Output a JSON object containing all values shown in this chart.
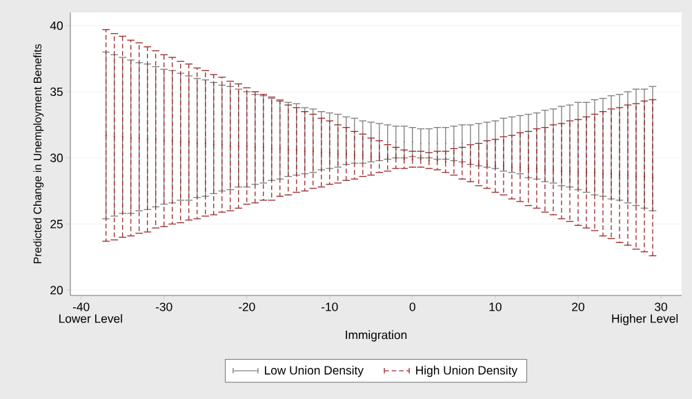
{
  "chart_data": {
    "type": "scatter",
    "xlabel": "Immigration",
    "ylabel": "Predicted Change in Unemployment Benefits",
    "x": [
      -37,
      -36,
      -35,
      -34,
      -33,
      -32,
      -31,
      -30,
      -29,
      -28,
      -27,
      -26,
      -25,
      -24,
      -23,
      -22,
      -21,
      -20,
      -19,
      -18,
      -17,
      -16,
      -15,
      -14,
      -13,
      -12,
      -11,
      -10,
      -9,
      -8,
      -7,
      -6,
      -5,
      -4,
      -3,
      -2,
      -1,
      0,
      1,
      2,
      3,
      4,
      5,
      6,
      7,
      8,
      9,
      10,
      11,
      12,
      13,
      14,
      15,
      16,
      17,
      18,
      19,
      20,
      21,
      22,
      23,
      24,
      25,
      26,
      27,
      28,
      29
    ],
    "series": [
      {
        "name": "Low Union Density",
        "color": "#7f7f7f",
        "line_style": "solid",
        "values": [
          31.7,
          31.7,
          31.7,
          31.6,
          31.6,
          31.6,
          31.6,
          31.6,
          31.6,
          31.6,
          31.5,
          31.5,
          31.5,
          31.5,
          31.5,
          31.5,
          31.5,
          31.4,
          31.4,
          31.4,
          31.4,
          31.4,
          31.4,
          31.4,
          31.3,
          31.3,
          31.3,
          31.3,
          31.3,
          31.3,
          31.3,
          31.2,
          31.2,
          31.2,
          31.2,
          31.2,
          31.2,
          31.2,
          31.1,
          31.1,
          31.1,
          31.1,
          31.1,
          31.1,
          31.0,
          31.0,
          31.0,
          31.0,
          31.0,
          31.0,
          31.0,
          30.9,
          30.9,
          30.9,
          30.9,
          30.9,
          30.9,
          30.9,
          30.8,
          30.8,
          30.8,
          30.8,
          30.8,
          30.8,
          30.8,
          30.7,
          30.7
        ],
        "errors": [
          6.3,
          6.1,
          5.9,
          5.8,
          5.6,
          5.5,
          5.3,
          5.1,
          5.0,
          4.8,
          4.7,
          4.5,
          4.4,
          4.2,
          4.0,
          3.9,
          3.7,
          3.6,
          3.4,
          3.3,
          3.1,
          3.0,
          2.8,
          2.7,
          2.5,
          2.4,
          2.2,
          2.1,
          2.0,
          1.8,
          1.7,
          1.6,
          1.5,
          1.4,
          1.3,
          1.2,
          1.2,
          1.1,
          1.1,
          1.1,
          1.2,
          1.2,
          1.3,
          1.4,
          1.5,
          1.6,
          1.7,
          1.8,
          2.0,
          2.1,
          2.2,
          2.4,
          2.5,
          2.7,
          2.8,
          3.0,
          3.1,
          3.3,
          3.4,
          3.6,
          3.7,
          3.9,
          4.0,
          4.2,
          4.4,
          4.5,
          4.7
        ]
      },
      {
        "name": "High Union Density",
        "color": "#9b2a2a",
        "line_style": "dashed",
        "values": [
          31.7,
          31.6,
          31.6,
          31.5,
          31.5,
          31.4,
          31.4,
          31.3,
          31.3,
          31.2,
          31.2,
          31.1,
          31.1,
          31.0,
          31.0,
          30.9,
          30.9,
          30.9,
          30.8,
          30.8,
          30.7,
          30.7,
          30.6,
          30.6,
          30.5,
          30.5,
          30.4,
          30.4,
          30.3,
          30.3,
          30.2,
          30.2,
          30.1,
          30.1,
          30.0,
          30.0,
          29.9,
          29.9,
          29.9,
          29.8,
          29.8,
          29.7,
          29.7,
          29.6,
          29.6,
          29.5,
          29.5,
          29.4,
          29.4,
          29.3,
          29.3,
          29.2,
          29.2,
          29.1,
          29.1,
          29.0,
          29.0,
          28.9,
          28.9,
          28.9,
          28.8,
          28.8,
          28.7,
          28.7,
          28.6,
          28.6,
          28.5
        ],
        "errors": [
          8.0,
          7.8,
          7.6,
          7.4,
          7.2,
          7.0,
          6.7,
          6.5,
          6.3,
          6.1,
          5.9,
          5.7,
          5.5,
          5.3,
          5.1,
          4.9,
          4.7,
          4.4,
          4.2,
          4.0,
          3.9,
          3.6,
          3.4,
          3.2,
          3.0,
          2.8,
          2.6,
          2.4,
          2.2,
          2.0,
          1.8,
          1.6,
          1.4,
          1.2,
          1.0,
          0.8,
          0.7,
          0.6,
          0.6,
          0.6,
          0.7,
          0.8,
          1.0,
          1.2,
          1.4,
          1.6,
          1.8,
          2.0,
          2.2,
          2.4,
          2.6,
          2.8,
          3.0,
          3.2,
          3.4,
          3.6,
          3.8,
          4.0,
          4.2,
          4.4,
          4.7,
          4.9,
          5.1,
          5.3,
          5.5,
          5.7,
          5.9
        ]
      }
    ],
    "xlim": [
      -41.3,
      32.5
    ],
    "ylim": [
      19.6,
      41
    ],
    "xticks": [
      -40,
      -30,
      -20,
      -10,
      0,
      10,
      20,
      30
    ],
    "yticks": [
      20,
      25,
      30,
      35,
      40
    ],
    "annotations": [
      "Lower Level",
      "Higher Level"
    ],
    "grid": "y",
    "legend": "bottom"
  }
}
